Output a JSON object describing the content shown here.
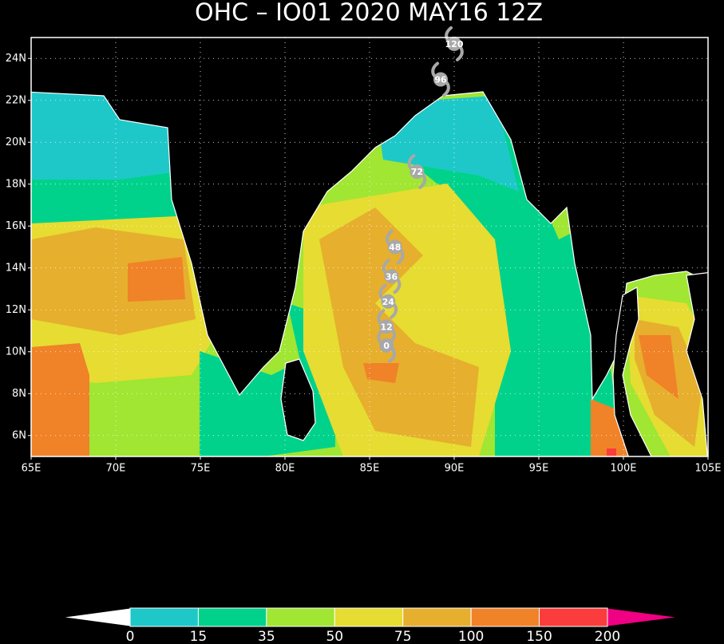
{
  "title": "OHC – IO01 2020 MAY16 12Z",
  "map": {
    "xlim": [
      65,
      105
    ],
    "ylim": [
      5,
      25
    ],
    "xticks": [
      {
        "value": 65,
        "label": "65E"
      },
      {
        "value": 70,
        "label": "70E"
      },
      {
        "value": 75,
        "label": "75E"
      },
      {
        "value": 80,
        "label": "80E"
      },
      {
        "value": 85,
        "label": "85E"
      },
      {
        "value": 90,
        "label": "90E"
      },
      {
        "value": 95,
        "label": "95E"
      },
      {
        "value": 100,
        "label": "100E"
      },
      {
        "value": 105,
        "label": "105E"
      }
    ],
    "yticks": [
      {
        "value": 6,
        "label": "6N"
      },
      {
        "value": 8,
        "label": "8N"
      },
      {
        "value": 10,
        "label": "10N"
      },
      {
        "value": 12,
        "label": "12N"
      },
      {
        "value": 14,
        "label": "14N"
      },
      {
        "value": 16,
        "label": "16N"
      },
      {
        "value": 18,
        "label": "18N"
      },
      {
        "value": 20,
        "label": "20N"
      },
      {
        "value": 22,
        "label": "22N"
      },
      {
        "value": 24,
        "label": "24N"
      }
    ],
    "grid": true
  },
  "track": [
    {
      "label": "0",
      "lon": 86.0,
      "lat": 10.3
    },
    {
      "label": "12",
      "lon": 86.0,
      "lat": 11.2
    },
    {
      "label": "24",
      "lon": 86.1,
      "lat": 12.4
    },
    {
      "label": "36",
      "lon": 86.3,
      "lat": 13.6
    },
    {
      "label": "48",
      "lon": 86.5,
      "lat": 15.0
    },
    {
      "label": "72",
      "lon": 87.8,
      "lat": 18.6
    },
    {
      "label": "96",
      "lon": 89.2,
      "lat": 23.0
    },
    {
      "label": "120",
      "lon": 90.0,
      "lat": 24.7
    }
  ],
  "track_color": "#a8a8a8",
  "colorbar": {
    "bounds": [
      0,
      15,
      35,
      50,
      75,
      100,
      150,
      200
    ],
    "colors": [
      "#1ec8c8",
      "#00d28c",
      "#a0e632",
      "#e6dc32",
      "#e6af2d",
      "#f08228",
      "#fa3c3c"
    ],
    "under_color": "#ffffff",
    "over_color": "#f00082"
  }
}
